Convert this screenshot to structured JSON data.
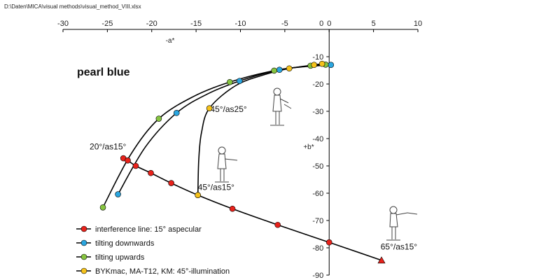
{
  "file_path": "D:\\Daten\\MICA\\visual methods\\visual_method_VIII.xlsx",
  "colors": {
    "interference": "#e8221b",
    "downwards": "#2aa6e0",
    "upwards": "#86c440",
    "bykmac": "#f5c21b"
  },
  "chart_data": {
    "type": "scatter",
    "title": "pearl blue",
    "xlabel": "-a*",
    "ylabel": "+b*",
    "xlim": [
      -30,
      10
    ],
    "ylim": [
      -90,
      0
    ],
    "xticks": [
      -30,
      -25,
      -20,
      -15,
      -10,
      -5,
      0,
      5,
      10
    ],
    "yticks": [
      0,
      -10,
      -20,
      -30,
      -40,
      -50,
      -60,
      -70,
      -80,
      -90
    ],
    "grid": false,
    "legend_position": "bottom-left",
    "series": [
      {
        "name": "interference line: 15° aspecular",
        "color": "#e8221b",
        "marker": "circle",
        "points": [
          [
            -23.2,
            -47.2
          ],
          [
            -22.7,
            -48.0
          ],
          [
            -21.8,
            -50.0
          ],
          [
            -20.1,
            -52.6
          ],
          [
            -17.8,
            -56.3
          ],
          [
            -14.8,
            -60.7
          ],
          [
            -10.9,
            -65.7
          ],
          [
            -5.8,
            -71.6
          ],
          [
            0.0,
            -78.0
          ]
        ]
      },
      {
        "name": "tilting downwards",
        "color": "#2aa6e0",
        "marker": "circle",
        "points": [
          [
            -23.8,
            -60.4
          ],
          [
            -17.2,
            -30.6
          ],
          [
            -10.1,
            -18.9
          ],
          [
            -5.6,
            -14.8
          ],
          [
            0.2,
            -13.0
          ]
        ]
      },
      {
        "name": "tilting upwards",
        "color": "#86c440",
        "marker": "circle",
        "points": [
          [
            -25.5,
            -65.2
          ],
          [
            -19.2,
            -32.7
          ],
          [
            -11.2,
            -19.3
          ],
          [
            -6.2,
            -15.1
          ],
          [
            -2.1,
            -13.3
          ],
          [
            -0.4,
            -12.9
          ]
        ]
      },
      {
        "name": "BYKmac, MA-T12, KM: 45°-illumination",
        "color": "#f5c21b",
        "marker": "circle",
        "points": [
          [
            -14.8,
            -60.7
          ],
          [
            -13.5,
            -28.9
          ],
          [
            -4.5,
            -14.3
          ],
          [
            -1.7,
            -13.0
          ],
          [
            -0.8,
            -12.6
          ]
        ]
      },
      {
        "name": "",
        "color": "#e8221b",
        "marker": "triangle",
        "points": [
          [
            5.9,
            -84.6
          ]
        ]
      }
    ],
    "curves": [
      {
        "from": "interference",
        "points": [
          [
            -23.2,
            -47.2
          ],
          [
            -22.7,
            -48.0
          ],
          [
            -21.8,
            -50.0
          ],
          [
            -20.1,
            -52.6
          ],
          [
            -17.8,
            -56.3
          ],
          [
            -14.8,
            -60.7
          ],
          [
            -10.9,
            -65.7
          ],
          [
            -5.8,
            -71.6
          ],
          [
            0.0,
            -78.0
          ],
          [
            5.9,
            -84.6
          ]
        ]
      },
      {
        "from": "downwards",
        "points": [
          [
            -23.8,
            -60.4
          ],
          [
            -20.7,
            -43.0
          ],
          [
            -17.2,
            -30.6
          ],
          [
            -13.8,
            -23.8
          ],
          [
            -10.1,
            -18.9
          ],
          [
            -5.6,
            -14.8
          ],
          [
            -2.5,
            -13.6
          ],
          [
            0.2,
            -13.0
          ]
        ]
      },
      {
        "from": "upwards",
        "points": [
          [
            -25.5,
            -65.2
          ],
          [
            -22.4,
            -46.0
          ],
          [
            -19.2,
            -32.7
          ],
          [
            -15.3,
            -24.6
          ],
          [
            -11.2,
            -19.3
          ],
          [
            -6.2,
            -15.1
          ],
          [
            -2.1,
            -13.3
          ],
          [
            -0.4,
            -12.9
          ]
        ]
      },
      {
        "from": "bykmac",
        "points": [
          [
            -14.8,
            -60.7
          ],
          [
            -14.7,
            -48.0
          ],
          [
            -14.4,
            -38.0
          ],
          [
            -13.5,
            -28.9
          ],
          [
            -10.5,
            -20.5
          ],
          [
            -7.2,
            -16.5
          ],
          [
            -4.5,
            -14.3
          ],
          [
            -1.7,
            -13.0
          ],
          [
            -0.8,
            -12.6
          ]
        ]
      }
    ],
    "annotations": [
      {
        "text": "20°/as15°",
        "x": -27.0,
        "y": -44.0
      },
      {
        "text": "45°/as25°",
        "x": -13.4,
        "y": -30.2
      },
      {
        "text": "45°/as15°",
        "x": -14.8,
        "y": -58.8
      },
      {
        "text": "65°/as15°",
        "x": 5.8,
        "y": -80.7
      }
    ]
  }
}
